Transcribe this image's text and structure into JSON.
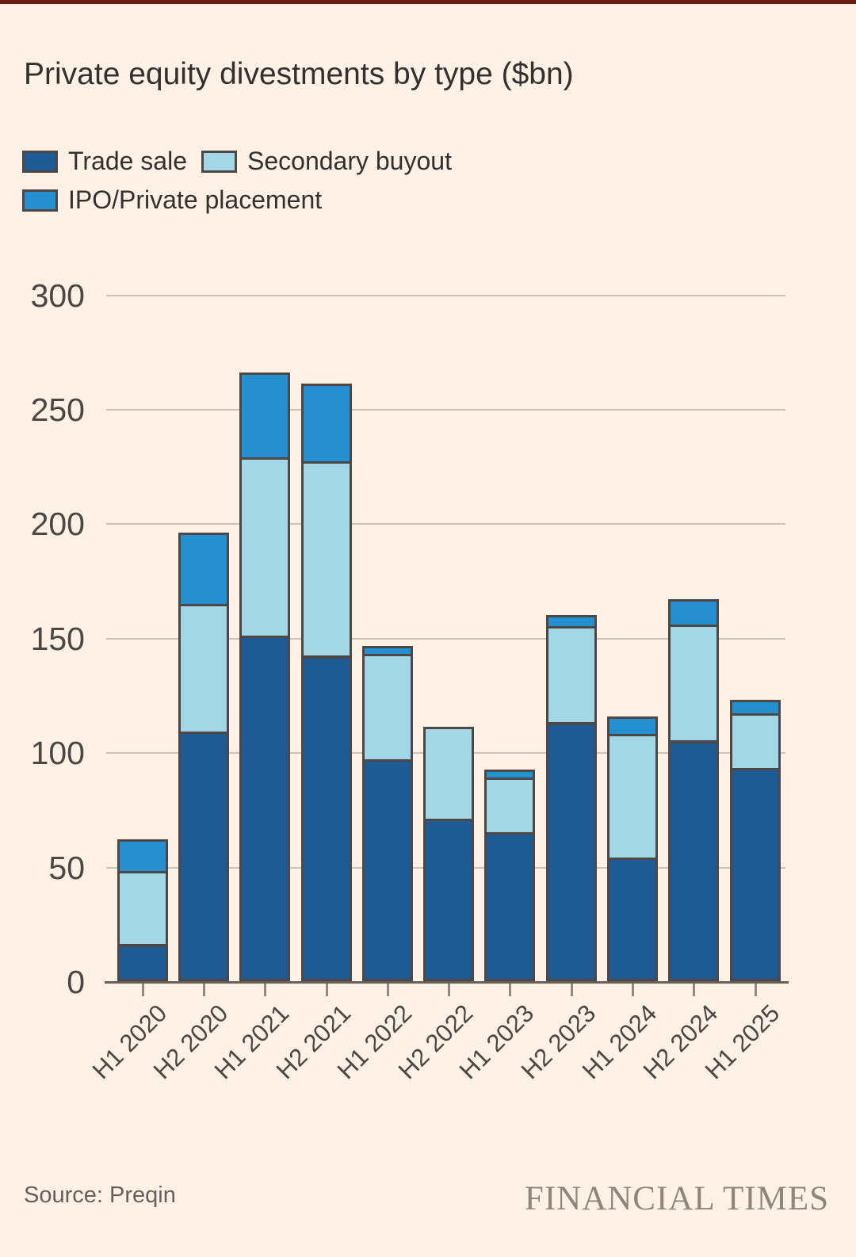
{
  "header": {
    "title": "Private equity divestments by type ($bn)"
  },
  "legend": {
    "items": [
      {
        "label": "Trade sale",
        "color": "#1e5a94"
      },
      {
        "label": "Secondary buyout",
        "color": "#a2d7e7"
      },
      {
        "label": "IPO/Private placement",
        "color": "#2590d0"
      }
    ]
  },
  "footer": {
    "source": "Source: Preqin",
    "brand": "FINANCIAL TIMES"
  },
  "colors": {
    "background": "#fff1e5",
    "top_rule": "#6e1911",
    "title_text": "#33302e",
    "axis_text": "#4c4742",
    "gridline": "#ccc3b8",
    "axis_line": "#66605b",
    "tick": "#8f8a84",
    "bar_stroke": "#4d4845",
    "source_text": "#66605b",
    "brand_text": "#8e857b"
  },
  "chart_data": {
    "type": "bar",
    "stacked": true,
    "title": "Private equity divestments by type ($bn)",
    "xlabel": "",
    "ylabel": "",
    "ylim": [
      0,
      300
    ],
    "yticks": [
      0,
      50,
      100,
      150,
      200,
      250,
      300
    ],
    "grid": true,
    "legend_position": "top-left",
    "categories": [
      "H1 2020",
      "H2 2020",
      "H1 2021",
      "H2 2021",
      "H1 2022",
      "H2 2022",
      "H1 2023",
      "H2 2023",
      "H1 2024",
      "H2 2024",
      "H1 2025"
    ],
    "series": [
      {
        "name": "Trade sale",
        "color": "#1e5a94",
        "values": [
          16,
          109,
          151,
          142,
          97,
          71,
          65,
          113,
          54,
          105,
          93
        ]
      },
      {
        "name": "Secondary buyout",
        "color": "#a2d7e7",
        "values": [
          32,
          56,
          78,
          85,
          46,
          40,
          24,
          42,
          54,
          51,
          24
        ]
      },
      {
        "name": "IPO/Private placement",
        "color": "#2590d0",
        "values": [
          14,
          31,
          37,
          34,
          3.5,
          0,
          3.5,
          5,
          7.5,
          11,
          6
        ]
      }
    ],
    "stacked_totals": [
      62,
      196,
      266,
      261,
      146.5,
      111,
      92.5,
      160,
      115.5,
      167,
      123
    ]
  }
}
